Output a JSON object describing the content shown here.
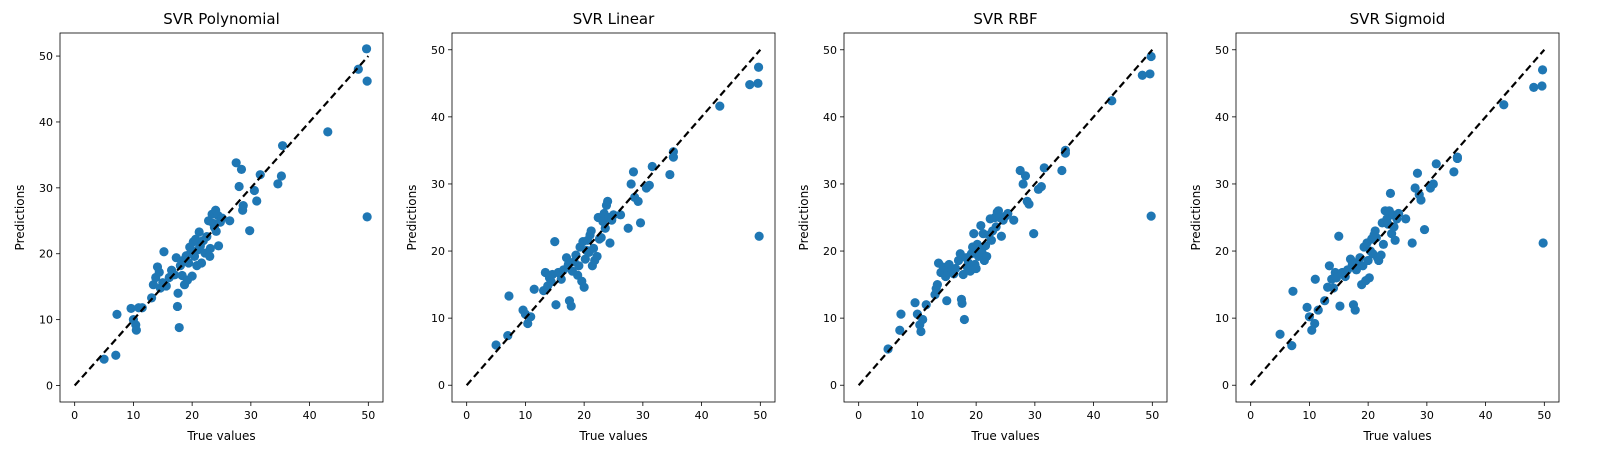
{
  "chart_data": [
    {
      "type": "scatter",
      "title": "SVR Polynomial",
      "xlabel": "True values",
      "ylabel": "Predictions",
      "xlim": [
        -2.5,
        52.5
      ],
      "ylim": [
        -2.5,
        53.5
      ],
      "xticks": [
        0,
        10,
        20,
        30,
        40,
        50
      ],
      "yticks": [
        0,
        10,
        20,
        30,
        40,
        50
      ],
      "marker_color": "#1f77b4",
      "reference_line": {
        "x": [
          0,
          50
        ],
        "y": [
          0,
          50
        ],
        "style": "dashed",
        "color": "#000000"
      },
      "points": [
        [
          5.0,
          4.0
        ],
        [
          7.0,
          4.6
        ],
        [
          7.2,
          10.8
        ],
        [
          9.6,
          11.7
        ],
        [
          10.0,
          10.0
        ],
        [
          10.4,
          9.2
        ],
        [
          10.5,
          8.4
        ],
        [
          10.9,
          11.8
        ],
        [
          11.5,
          11.8
        ],
        [
          13.1,
          13.3
        ],
        [
          13.4,
          15.3
        ],
        [
          13.8,
          16.4
        ],
        [
          14.1,
          18.0
        ],
        [
          14.4,
          17.2
        ],
        [
          14.6,
          14.8
        ],
        [
          15.0,
          15.6
        ],
        [
          15.2,
          20.3
        ],
        [
          15.6,
          15.1
        ],
        [
          16.1,
          16.4
        ],
        [
          16.5,
          17.5
        ],
        [
          17.0,
          16.8
        ],
        [
          17.3,
          19.4
        ],
        [
          17.5,
          12.0
        ],
        [
          17.6,
          14.0
        ],
        [
          17.8,
          8.8
        ],
        [
          18.0,
          18.2
        ],
        [
          18.3,
          16.7
        ],
        [
          18.5,
          19.0
        ],
        [
          18.7,
          15.3
        ],
        [
          19.0,
          19.7
        ],
        [
          19.2,
          16.0
        ],
        [
          19.4,
          18.6
        ],
        [
          19.6,
          21.0
        ],
        [
          19.8,
          20.2
        ],
        [
          20.0,
          16.6
        ],
        [
          20.2,
          21.8
        ],
        [
          20.4,
          19.6
        ],
        [
          20.6,
          22.2
        ],
        [
          20.8,
          18.2
        ],
        [
          21.0,
          20.6
        ],
        [
          21.2,
          23.3
        ],
        [
          21.4,
          21.2
        ],
        [
          21.6,
          18.6
        ],
        [
          21.9,
          22.0
        ],
        [
          22.2,
          20.1
        ],
        [
          22.5,
          22.6
        ],
        [
          22.8,
          25.0
        ],
        [
          23.0,
          19.6
        ],
        [
          23.1,
          20.8
        ],
        [
          23.4,
          26.0
        ],
        [
          23.6,
          24.6
        ],
        [
          23.8,
          24.0
        ],
        [
          24.0,
          26.6
        ],
        [
          24.1,
          23.4
        ],
        [
          24.4,
          25.8
        ],
        [
          24.5,
          21.2
        ],
        [
          24.8,
          24.8
        ],
        [
          25.1,
          25.4
        ],
        [
          26.4,
          25.0
        ],
        [
          27.5,
          33.8
        ],
        [
          28.0,
          30.2
        ],
        [
          28.4,
          32.8
        ],
        [
          28.6,
          26.6
        ],
        [
          28.7,
          27.3
        ],
        [
          29.8,
          23.5
        ],
        [
          30.6,
          29.6
        ],
        [
          31.0,
          28.0
        ],
        [
          31.6,
          32.0
        ],
        [
          34.6,
          30.6
        ],
        [
          35.2,
          31.8
        ],
        [
          35.4,
          36.4
        ],
        [
          43.1,
          38.5
        ],
        [
          48.3,
          48.0
        ],
        [
          49.7,
          51.1
        ],
        [
          49.8,
          46.2
        ],
        [
          49.8,
          25.6
        ]
      ]
    },
    {
      "type": "scatter",
      "title": "SVR Linear",
      "xlabel": "True values",
      "ylabel": "Predictions",
      "xlim": [
        -2.5,
        52.5
      ],
      "ylim": [
        -2.5,
        52.5
      ],
      "xticks": [
        0,
        10,
        20,
        30,
        40,
        50
      ],
      "yticks": [
        0,
        10,
        20,
        30,
        40,
        50
      ],
      "marker_color": "#1f77b4",
      "reference_line": {
        "x": [
          0,
          50
        ],
        "y": [
          0,
          50
        ],
        "style": "dashed",
        "color": "#000000"
      },
      "points": [
        [
          5.0,
          6.0
        ],
        [
          7.0,
          7.4
        ],
        [
          7.2,
          13.3
        ],
        [
          9.6,
          11.2
        ],
        [
          10.0,
          10.6
        ],
        [
          10.4,
          9.2
        ],
        [
          10.9,
          10.2
        ],
        [
          11.5,
          14.3
        ],
        [
          13.1,
          14.1
        ],
        [
          13.4,
          16.8
        ],
        [
          13.8,
          14.8
        ],
        [
          14.1,
          16.0
        ],
        [
          14.4,
          15.4
        ],
        [
          14.6,
          16.5
        ],
        [
          15.0,
          21.4
        ],
        [
          15.2,
          12.0
        ],
        [
          15.6,
          16.8
        ],
        [
          16.1,
          15.8
        ],
        [
          16.5,
          17.2
        ],
        [
          17.0,
          19.0
        ],
        [
          17.3,
          18.0
        ],
        [
          17.5,
          12.6
        ],
        [
          17.8,
          11.8
        ],
        [
          18.0,
          17.0
        ],
        [
          18.3,
          18.4
        ],
        [
          18.6,
          19.4
        ],
        [
          18.9,
          16.4
        ],
        [
          19.1,
          17.8
        ],
        [
          19.3,
          20.6
        ],
        [
          19.6,
          15.5
        ],
        [
          19.8,
          21.4
        ],
        [
          20.0,
          14.6
        ],
        [
          20.2,
          18.8
        ],
        [
          20.4,
          20.1
        ],
        [
          20.6,
          21.6
        ],
        [
          20.8,
          19.8
        ],
        [
          21.0,
          22.4
        ],
        [
          21.2,
          23.0
        ],
        [
          21.4,
          17.8
        ],
        [
          21.6,
          20.4
        ],
        [
          21.8,
          18.6
        ],
        [
          22.2,
          19.2
        ],
        [
          22.4,
          25.0
        ],
        [
          22.6,
          21.8
        ],
        [
          22.9,
          22.0
        ],
        [
          23.2,
          24.4
        ],
        [
          23.4,
          25.6
        ],
        [
          23.6,
          23.4
        ],
        [
          23.8,
          26.8
        ],
        [
          24.0,
          27.4
        ],
        [
          24.2,
          25.0
        ],
        [
          24.4,
          21.2
        ],
        [
          24.7,
          24.6
        ],
        [
          25.0,
          25.4
        ],
        [
          26.2,
          25.4
        ],
        [
          27.5,
          23.4
        ],
        [
          28.0,
          30.0
        ],
        [
          28.4,
          31.8
        ],
        [
          28.6,
          28.0
        ],
        [
          29.2,
          27.4
        ],
        [
          29.6,
          24.2
        ],
        [
          30.6,
          29.4
        ],
        [
          31.1,
          29.8
        ],
        [
          31.6,
          32.6
        ],
        [
          34.6,
          31.4
        ],
        [
          35.2,
          34.0
        ],
        [
          35.2,
          34.8
        ],
        [
          43.1,
          41.6
        ],
        [
          48.2,
          44.8
        ],
        [
          49.6,
          45.0
        ],
        [
          49.7,
          47.4
        ],
        [
          49.8,
          22.2
        ]
      ]
    },
    {
      "type": "scatter",
      "title": "SVR RBF",
      "xlabel": "True values",
      "ylabel": "Predictions",
      "xlim": [
        -2.5,
        52.5
      ],
      "ylim": [
        -2.5,
        52.5
      ],
      "xticks": [
        0,
        10,
        20,
        30,
        40,
        50
      ],
      "yticks": [
        0,
        10,
        20,
        30,
        40,
        50
      ],
      "marker_color": "#1f77b4",
      "reference_line": {
        "x": [
          0,
          50
        ],
        "y": [
          0,
          50
        ],
        "style": "dashed",
        "color": "#000000"
      },
      "points": [
        [
          5.0,
          5.4
        ],
        [
          7.0,
          8.2
        ],
        [
          7.2,
          10.6
        ],
        [
          9.6,
          12.3
        ],
        [
          10.0,
          10.6
        ],
        [
          10.4,
          9.0
        ],
        [
          10.6,
          8.0
        ],
        [
          10.9,
          9.8
        ],
        [
          11.5,
          12.0
        ],
        [
          13.0,
          13.5
        ],
        [
          13.2,
          14.4
        ],
        [
          13.4,
          15.0
        ],
        [
          13.6,
          18.2
        ],
        [
          14.0,
          16.8
        ],
        [
          14.4,
          17.6
        ],
        [
          14.8,
          16.2
        ],
        [
          15.0,
          12.6
        ],
        [
          15.2,
          16.8
        ],
        [
          15.4,
          18.0
        ],
        [
          15.8,
          17.2
        ],
        [
          16.2,
          16.6
        ],
        [
          16.5,
          17.4
        ],
        [
          17.0,
          18.6
        ],
        [
          17.3,
          19.6
        ],
        [
          17.5,
          12.8
        ],
        [
          17.6,
          12.2
        ],
        [
          17.8,
          16.5
        ],
        [
          18.0,
          9.8
        ],
        [
          18.3,
          19.0
        ],
        [
          18.5,
          17.6
        ],
        [
          18.7,
          18.2
        ],
        [
          19.0,
          17.0
        ],
        [
          19.2,
          19.6
        ],
        [
          19.4,
          20.6
        ],
        [
          19.6,
          22.6
        ],
        [
          19.8,
          18.0
        ],
        [
          20.0,
          17.4
        ],
        [
          20.2,
          21.0
        ],
        [
          20.4,
          19.2
        ],
        [
          20.6,
          20.2
        ],
        [
          20.8,
          23.8
        ],
        [
          21.0,
          19.8
        ],
        [
          21.2,
          22.6
        ],
        [
          21.4,
          18.6
        ],
        [
          21.6,
          20.8
        ],
        [
          21.8,
          19.2
        ],
        [
          22.2,
          22.4
        ],
        [
          22.4,
          24.8
        ],
        [
          22.6,
          21.6
        ],
        [
          22.8,
          23.0
        ],
        [
          23.2,
          25.0
        ],
        [
          23.4,
          23.6
        ],
        [
          23.6,
          25.8
        ],
        [
          23.8,
          26.0
        ],
        [
          24.0,
          25.0
        ],
        [
          24.3,
          22.2
        ],
        [
          24.6,
          24.6
        ],
        [
          25.0,
          25.2
        ],
        [
          25.4,
          25.6
        ],
        [
          26.4,
          24.6
        ],
        [
          27.5,
          32.0
        ],
        [
          28.0,
          30.0
        ],
        [
          28.4,
          31.2
        ],
        [
          28.7,
          27.4
        ],
        [
          29.0,
          27.0
        ],
        [
          29.8,
          22.6
        ],
        [
          30.6,
          29.2
        ],
        [
          31.1,
          29.6
        ],
        [
          31.6,
          32.4
        ],
        [
          34.6,
          32.0
        ],
        [
          35.2,
          34.6
        ],
        [
          35.2,
          35.0
        ],
        [
          43.1,
          42.4
        ],
        [
          48.3,
          46.2
        ],
        [
          49.6,
          46.4
        ],
        [
          49.8,
          49.0
        ],
        [
          49.8,
          25.2
        ]
      ]
    },
    {
      "type": "scatter",
      "title": "SVR Sigmoid",
      "xlabel": "True values",
      "ylabel": "Predictions",
      "xlim": [
        -2.5,
        52.5
      ],
      "ylim": [
        -2.5,
        52.5
      ],
      "xticks": [
        0,
        10,
        20,
        30,
        40,
        50
      ],
      "yticks": [
        0,
        10,
        20,
        30,
        40,
        50
      ],
      "marker_color": "#1f77b4",
      "reference_line": {
        "x": [
          0,
          50
        ],
        "y": [
          0,
          50
        ],
        "style": "dashed",
        "color": "#000000"
      },
      "points": [
        [
          5.0,
          7.6
        ],
        [
          7.0,
          5.9
        ],
        [
          7.2,
          14.0
        ],
        [
          9.6,
          11.6
        ],
        [
          10.0,
          10.2
        ],
        [
          10.4,
          8.2
        ],
        [
          10.9,
          9.2
        ],
        [
          11.0,
          15.8
        ],
        [
          11.5,
          11.2
        ],
        [
          12.6,
          12.6
        ],
        [
          13.1,
          14.6
        ],
        [
          13.4,
          17.8
        ],
        [
          13.8,
          15.8
        ],
        [
          14.1,
          14.5
        ],
        [
          14.4,
          16.8
        ],
        [
          14.6,
          16.0
        ],
        [
          15.0,
          22.2
        ],
        [
          15.2,
          11.8
        ],
        [
          15.6,
          16.8
        ],
        [
          16.1,
          16.2
        ],
        [
          16.5,
          17.2
        ],
        [
          17.0,
          18.8
        ],
        [
          17.3,
          18.0
        ],
        [
          17.5,
          12.0
        ],
        [
          17.8,
          11.2
        ],
        [
          18.0,
          17.2
        ],
        [
          18.3,
          18.4
        ],
        [
          18.6,
          19.0
        ],
        [
          18.9,
          15.0
        ],
        [
          19.1,
          17.8
        ],
        [
          19.3,
          20.6
        ],
        [
          19.6,
          15.6
        ],
        [
          19.8,
          21.2
        ],
        [
          20.0,
          18.6
        ],
        [
          20.2,
          16.0
        ],
        [
          20.4,
          20.0
        ],
        [
          20.6,
          21.8
        ],
        [
          20.8,
          19.6
        ],
        [
          21.0,
          22.4
        ],
        [
          21.2,
          23.0
        ],
        [
          21.4,
          22.0
        ],
        [
          21.6,
          19.0
        ],
        [
          21.8,
          18.6
        ],
        [
          22.2,
          19.4
        ],
        [
          22.4,
          24.2
        ],
        [
          22.6,
          21.0
        ],
        [
          22.9,
          26.0
        ],
        [
          23.2,
          24.8
        ],
        [
          23.4,
          24.0
        ],
        [
          23.6,
          26.0
        ],
        [
          23.8,
          28.6
        ],
        [
          24.0,
          22.6
        ],
        [
          24.2,
          25.4
        ],
        [
          24.4,
          23.6
        ],
        [
          24.6,
          21.6
        ],
        [
          24.9,
          24.8
        ],
        [
          25.2,
          25.6
        ],
        [
          26.4,
          24.8
        ],
        [
          27.5,
          21.2
        ],
        [
          28.0,
          29.4
        ],
        [
          28.4,
          31.6
        ],
        [
          28.7,
          28.4
        ],
        [
          29.0,
          27.6
        ],
        [
          29.6,
          23.2
        ],
        [
          30.6,
          29.4
        ],
        [
          31.1,
          30.0
        ],
        [
          31.6,
          33.0
        ],
        [
          34.6,
          31.8
        ],
        [
          35.2,
          33.8
        ],
        [
          35.2,
          34.0
        ],
        [
          43.1,
          41.8
        ],
        [
          48.2,
          44.4
        ],
        [
          49.6,
          44.6
        ],
        [
          49.7,
          47.0
        ],
        [
          49.8,
          21.2
        ]
      ]
    }
  ]
}
